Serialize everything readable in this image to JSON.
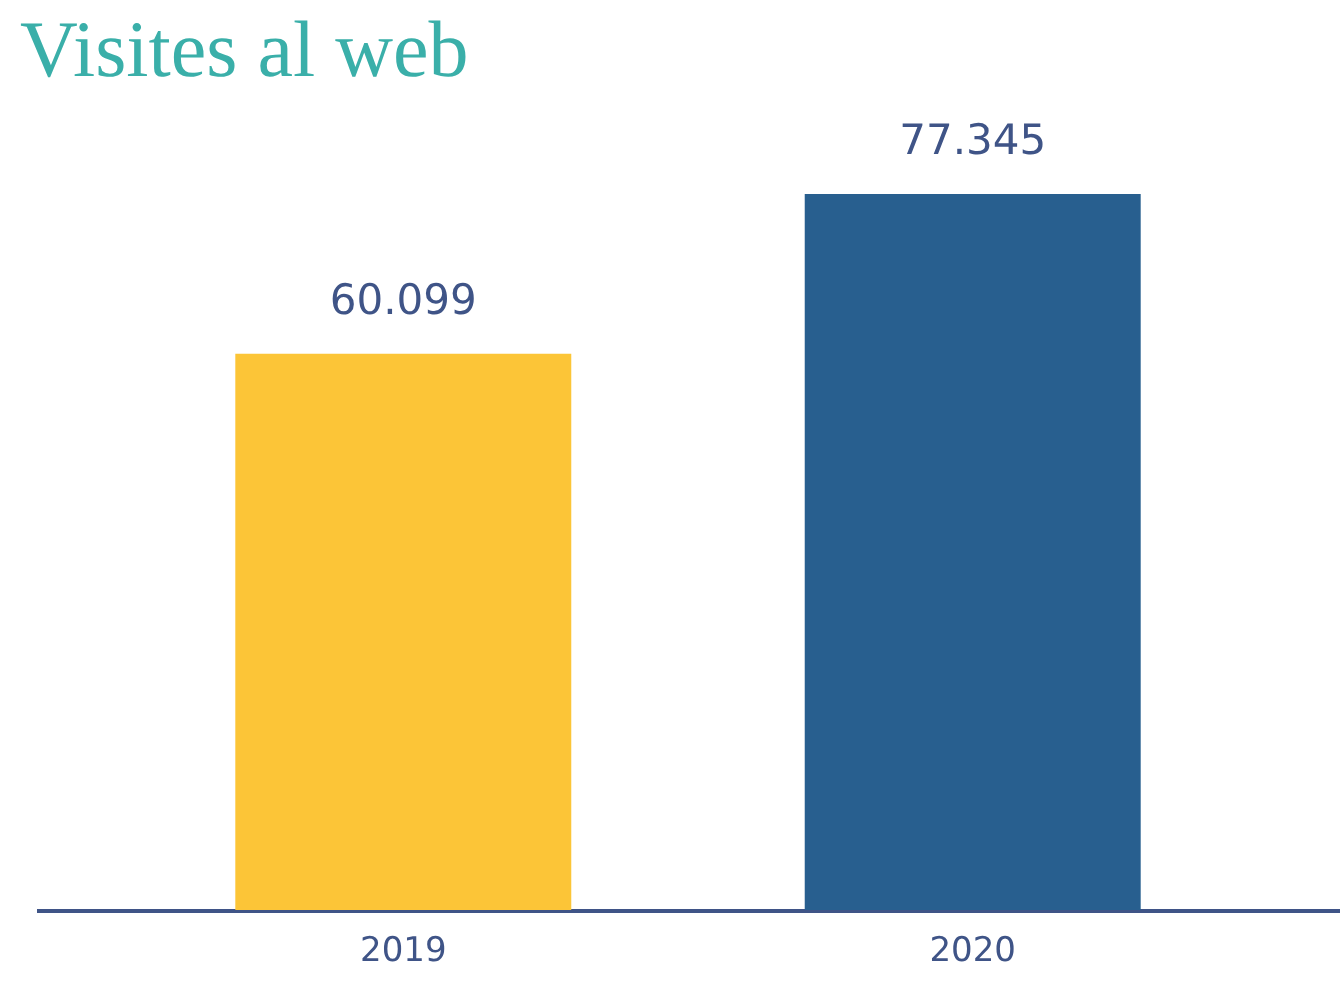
{
  "chart_data": {
    "type": "bar",
    "title": "Visites al web",
    "categories": [
      "2019",
      "2020"
    ],
    "values": [
      60099,
      77345
    ],
    "colors": [
      "#fcc537",
      "#285f8f"
    ],
    "value_labels": [
      "60.099",
      "77.345"
    ]
  }
}
